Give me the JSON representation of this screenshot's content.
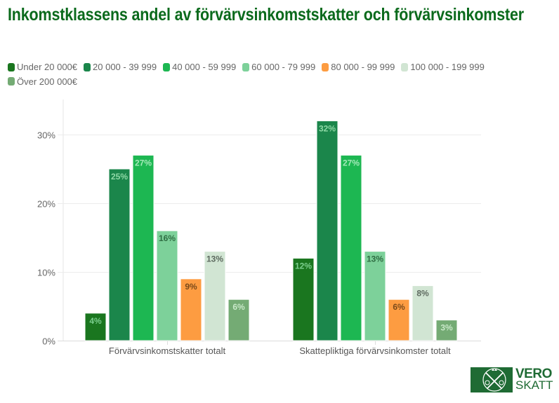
{
  "chart_data": {
    "type": "bar",
    "title": "Inkomstklassens andel av förvärvsinkomstskatter och förvärvsinkomster",
    "xlabel": "",
    "ylabel": "",
    "ylim": [
      0,
      35
    ],
    "y_ticks": [
      0,
      10,
      20,
      30
    ],
    "y_tick_labels": [
      "0%",
      "10%",
      "20%",
      "30%"
    ],
    "grid": true,
    "legend_position": "top-left",
    "categories": [
      "Förvärvsinkomstskatter totalt",
      "Skattepliktiga förvärvsinkomster totalt"
    ],
    "series": [
      {
        "name": "Under 20 000€",
        "color": "#1a761f",
        "label_color": "#7ccf8e",
        "values": [
          4,
          12
        ]
      },
      {
        "name": "20 000 - 39 999",
        "color": "#1b864b",
        "label_color": "#8fd9a6",
        "values": [
          25,
          32
        ]
      },
      {
        "name": "40 000 - 59 999",
        "color": "#1db752",
        "label_color": "#a4eab9",
        "values": [
          27,
          27
        ]
      },
      {
        "name": "60 000 - 79 999",
        "color": "#7dd19a",
        "label_color": "#2f6e43",
        "values": [
          16,
          13
        ]
      },
      {
        "name": "80 000 - 99 999",
        "color": "#fd9c41",
        "label_color": "#7a4a1a",
        "values": [
          9,
          6
        ]
      },
      {
        "name": "100 000 - 199 999",
        "color": "#d1e5d3",
        "label_color": "#5e6b60",
        "values": [
          13,
          8
        ]
      },
      {
        "name": "Över 200 000€",
        "color": "#74ab74",
        "label_color": "#c9e8c9",
        "values": [
          6,
          3
        ]
      }
    ],
    "value_suffix": "%"
  },
  "logo": {
    "line1": "VERO",
    "line2": "SKATT"
  }
}
